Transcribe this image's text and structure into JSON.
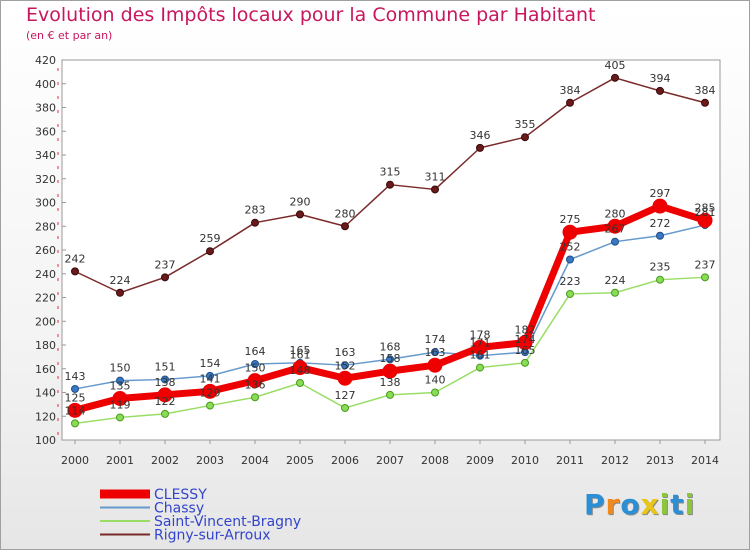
{
  "chart_data": {
    "type": "line",
    "title": "Evolution des Impôts locaux pour la Commune par Habitant",
    "subtitle": "(en € et par an)",
    "x": [
      "2000",
      "2001",
      "2002",
      "2003",
      "2004",
      "2005",
      "2006",
      "2007",
      "2008",
      "2009",
      "2010",
      "2011",
      "2012",
      "2013",
      "2014"
    ],
    "ylim": [
      100,
      420
    ],
    "yticks": [
      100,
      120,
      140,
      160,
      180,
      200,
      220,
      240,
      260,
      280,
      300,
      320,
      340,
      360,
      380,
      400,
      420
    ],
    "series": [
      {
        "name": "CLESSY",
        "color": "#ee0000",
        "values": [
          125,
          135,
          138,
          141,
          150,
          161,
          152,
          158,
          163,
          178,
          182,
          275,
          280,
          297,
          285
        ]
      },
      {
        "name": "Chassy",
        "color": "#6699cc",
        "values": [
          143,
          150,
          151,
          154,
          164,
          165,
          163,
          168,
          174,
          171,
          174,
          252,
          267,
          272,
          281
        ]
      },
      {
        "name": "Saint-Vincent-Bragny",
        "color": "#99dd66",
        "values": [
          114,
          119,
          122,
          129,
          136,
          148,
          127,
          138,
          140,
          161,
          165,
          223,
          224,
          235,
          237
        ]
      },
      {
        "name": "Rigny-sur-Arroux",
        "color": "#7a2a2a",
        "values": [
          242,
          224,
          237,
          259,
          283,
          290,
          280,
          315,
          311,
          346,
          355,
          384,
          405,
          394,
          384
        ]
      }
    ]
  },
  "logo": {
    "letters": [
      "P",
      "r",
      "o",
      "x",
      "i",
      "t",
      "i"
    ],
    "colors": [
      "#2b8fd6",
      "#f08a1c",
      "#2b8fd6",
      "#e8c51a",
      "#8cc63f",
      "#2b8fd6",
      "#8cc63f"
    ]
  }
}
